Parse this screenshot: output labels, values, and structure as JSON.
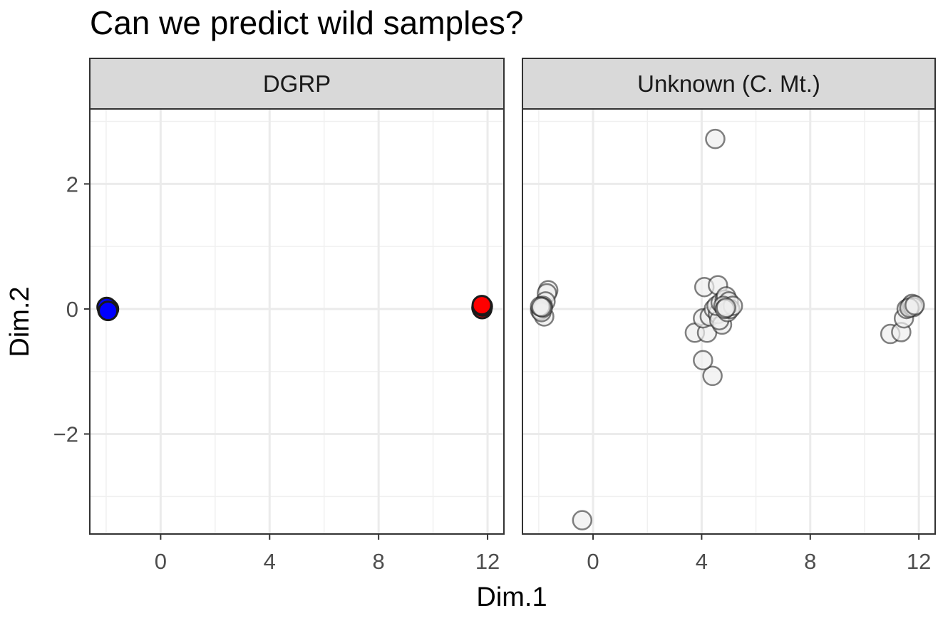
{
  "chart_data": {
    "type": "scatter",
    "title": "Can we predict wild samples?",
    "xlabel": "Dim.1",
    "ylabel": "Dim.2",
    "xlim": [
      -2.6,
      12.6
    ],
    "ylim": [
      -3.6,
      3.2
    ],
    "x_ticks": [
      0,
      4,
      8,
      12
    ],
    "x_tick_labels": [
      "0",
      "4",
      "8",
      "12"
    ],
    "y_ticks": [
      -2,
      0,
      2
    ],
    "y_tick_labels": [
      "−2",
      "0",
      "2"
    ],
    "grid": true,
    "legend": "none",
    "panels": [
      {
        "label": "DGRP",
        "series": [
          {
            "color": "#0000ff",
            "points": [
              [
                -1.95,
                0.02
              ],
              [
                -1.95,
                -0.02
              ],
              [
                -1.9,
                0.0
              ],
              [
                -1.98,
                0.03
              ],
              [
                -1.93,
                -0.03
              ]
            ]
          },
          {
            "color": "#ff0000",
            "points": [
              [
                11.8,
                0.05
              ],
              [
                11.78,
                0.02
              ],
              [
                11.8,
                0.0
              ],
              [
                11.82,
                0.04
              ],
              [
                11.79,
                0.06
              ]
            ]
          }
        ]
      },
      {
        "label": "Unknown (C. Mt.)",
        "series": [
          {
            "color": "#eeeeee",
            "points": [
              [
                4.5,
                2.72
              ],
              [
                -0.4,
                -3.38
              ],
              [
                4.4,
                -1.07
              ],
              [
                4.05,
                -0.82
              ],
              [
                3.75,
                -0.38
              ],
              [
                4.2,
                -0.38
              ],
              [
                4.05,
                -0.15
              ],
              [
                4.3,
                -0.12
              ],
              [
                4.1,
                0.35
              ],
              [
                4.6,
                0.38
              ],
              [
                4.45,
                0.0
              ],
              [
                4.6,
                -0.08
              ],
              [
                4.75,
                -0.25
              ],
              [
                4.65,
                -0.18
              ],
              [
                4.55,
                0.05
              ],
              [
                4.7,
                0.1
              ],
              [
                4.85,
                0.15
              ],
              [
                4.9,
                0.2
              ],
              [
                5.0,
                0.12
              ],
              [
                4.95,
                -0.05
              ],
              [
                5.05,
                0.0
              ],
              [
                4.8,
                0.05
              ],
              [
                5.15,
                0.05
              ],
              [
                4.85,
                0.0
              ],
              [
                4.9,
                0.02
              ],
              [
                -1.65,
                0.3
              ],
              [
                -1.7,
                0.25
              ],
              [
                -1.75,
                0.12
              ],
              [
                -1.8,
                -0.12
              ],
              [
                -1.85,
                0.05
              ],
              [
                -1.9,
                0.0
              ],
              [
                -1.95,
                -0.02
              ],
              [
                -1.9,
                -0.05
              ],
              [
                -1.85,
                0.02
              ],
              [
                -1.95,
                0.04
              ],
              [
                -1.9,
                0.03
              ],
              [
                10.95,
                -0.4
              ],
              [
                11.35,
                -0.37
              ],
              [
                11.45,
                -0.15
              ],
              [
                11.55,
                0.0
              ],
              [
                11.7,
                0.05
              ],
              [
                11.75,
                0.08
              ],
              [
                11.8,
                0.03
              ],
              [
                11.65,
                0.02
              ],
              [
                11.85,
                0.06
              ]
            ]
          }
        ]
      }
    ]
  }
}
